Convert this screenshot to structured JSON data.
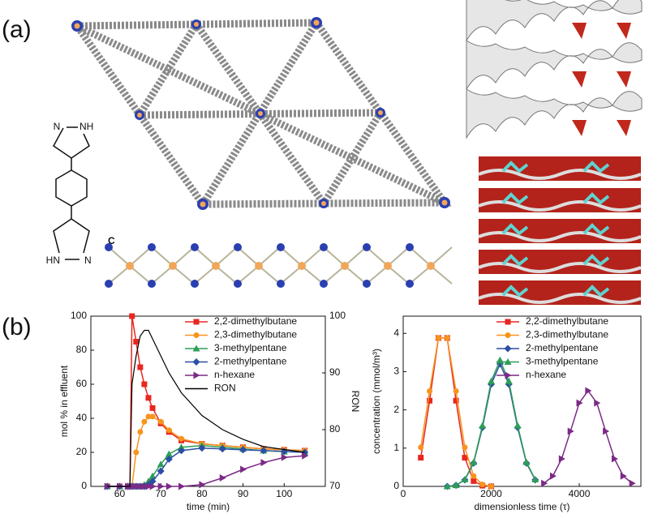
{
  "panel_a": {
    "label": "(a)",
    "molecule_atoms": [
      "N",
      "NH",
      "HN",
      "N"
    ],
    "chain_axis": "C"
  },
  "panel_b": {
    "label": "(b)"
  },
  "chart_data": [
    {
      "type": "line",
      "x_label": "time (min)",
      "y_label": "mol % in effluent",
      "y2_label": "RON",
      "x": [
        57,
        60,
        62,
        62.5,
        63,
        64,
        65,
        66,
        67,
        68,
        70,
        72,
        75,
        80,
        85,
        90,
        95,
        100,
        105
      ],
      "xlim": [
        53,
        110
      ],
      "xticks": [
        60,
        70,
        80,
        90,
        100
      ],
      "ylim": [
        0,
        100
      ],
      "yticks": [
        0,
        20,
        40,
        60,
        80,
        100
      ],
      "y2lim": [
        70,
        100
      ],
      "y2ticks": [
        70,
        80,
        90,
        100
      ],
      "legend": "upper right",
      "series": [
        {
          "name": "2,2-dimethylbutane",
          "color": "#e8271f",
          "marker": "square",
          "values": [
            0,
            0,
            0,
            0,
            100,
            85,
            70,
            60,
            52,
            46,
            37,
            32,
            27,
            25,
            24,
            23,
            22,
            21.5,
            21
          ]
        },
        {
          "name": "2,3-dimethylbutane",
          "color": "#f7941d",
          "marker": "circle",
          "values": [
            0,
            0,
            0,
            0,
            0,
            20,
            32,
            38,
            41,
            41,
            38,
            33,
            28,
            25,
            24,
            23,
            22,
            21.5,
            21
          ]
        },
        {
          "name": "3-methylpentane",
          "color": "#2e9e57",
          "marker": "triangle",
          "values": [
            0,
            0,
            0,
            0,
            0,
            0,
            0,
            1,
            3,
            6,
            13,
            19,
            23,
            24,
            23,
            22,
            21,
            20.5,
            20
          ]
        },
        {
          "name": "2-methylpentane",
          "color": "#2b4fa3",
          "marker": "diamond",
          "values": [
            0,
            0,
            0,
            0,
            0,
            0,
            0,
            0,
            1,
            3,
            9,
            16,
            21,
            22.5,
            22,
            21.5,
            21,
            20.5,
            20
          ]
        },
        {
          "name": "n-hexane",
          "color": "#7b2a86",
          "marker": "triangle-right",
          "values": [
            0,
            0,
            0,
            0,
            0,
            0,
            0,
            0,
            0,
            0,
            0,
            0,
            0,
            1,
            5,
            10,
            14,
            17,
            18
          ]
        },
        {
          "name": "RON",
          "color": "#000000",
          "marker": "none",
          "axis": "y2",
          "values": [
            70,
            70,
            70,
            70,
            88,
            93,
            96.5,
            97.5,
            97.5,
            96,
            93,
            90,
            86.5,
            82.5,
            80,
            78.3,
            77,
            76.5,
            76
          ]
        }
      ]
    },
    {
      "type": "line",
      "x_label": "dimensionless time (τ)",
      "y_label": "concentration (mmol/m³)",
      "x": [
        400,
        600,
        800,
        1000,
        1200,
        1400,
        1600,
        1800,
        2000,
        2200,
        2400,
        2600,
        2800,
        3000,
        3200,
        3400,
        3600,
        3800,
        4000,
        4200,
        4400,
        4600,
        4800,
        5000,
        5200
      ],
      "xlim": [
        0,
        5400
      ],
      "xticks": [
        0,
        2000,
        4000
      ],
      "ylim": [
        0,
        4.45
      ],
      "yticks": [
        0,
        1,
        2,
        3,
        4
      ],
      "legend": "upper right",
      "series": [
        {
          "name": "2,2-dimethylbutane",
          "color": "#e8271f",
          "marker": "square",
          "values": [
            0.75,
            2.24,
            3.88,
            3.88,
            2.24,
            0.75,
            0.14,
            0.02,
            0,
            null,
            null,
            null,
            null,
            null,
            null,
            null,
            null,
            null,
            null,
            null,
            null,
            null,
            null,
            null,
            null
          ]
        },
        {
          "name": "2,3-dimethylbutane",
          "color": "#f7941d",
          "marker": "circle",
          "values": [
            1.02,
            2.49,
            3.88,
            3.88,
            2.49,
            1.02,
            0.27,
            0.05,
            0,
            null,
            null,
            null,
            null,
            null,
            null,
            null,
            null,
            null,
            null,
            null,
            null,
            null,
            null,
            null,
            null
          ]
        },
        {
          "name": "2-methylpentane",
          "color": "#2b4fa3",
          "marker": "diamond",
          "values": [
            null,
            null,
            null,
            0,
            0.03,
            0.17,
            0.61,
            1.54,
            2.67,
            3.2,
            2.67,
            1.54,
            0.61,
            0.17,
            null,
            null,
            null,
            null,
            null,
            null,
            null,
            null,
            null,
            null,
            null
          ]
        },
        {
          "name": "3-methylpentane",
          "color": "#2e9e57",
          "marker": "triangle",
          "values": [
            null,
            null,
            null,
            0,
            0.03,
            0.18,
            0.63,
            1.59,
            2.75,
            3.3,
            2.75,
            1.59,
            0.63,
            0.18,
            null,
            null,
            null,
            null,
            null,
            null,
            null,
            null,
            null,
            null,
            null
          ]
        },
        {
          "name": "n-hexane",
          "color": "#7b2a86",
          "marker": "triangle-right",
          "values": [
            null,
            null,
            null,
            null,
            null,
            null,
            null,
            null,
            null,
            null,
            null,
            null,
            null,
            null,
            0.08,
            0.27,
            0.72,
            1.44,
            2.18,
            2.5,
            2.18,
            1.44,
            0.72,
            0.27,
            0.08
          ]
        }
      ]
    }
  ]
}
